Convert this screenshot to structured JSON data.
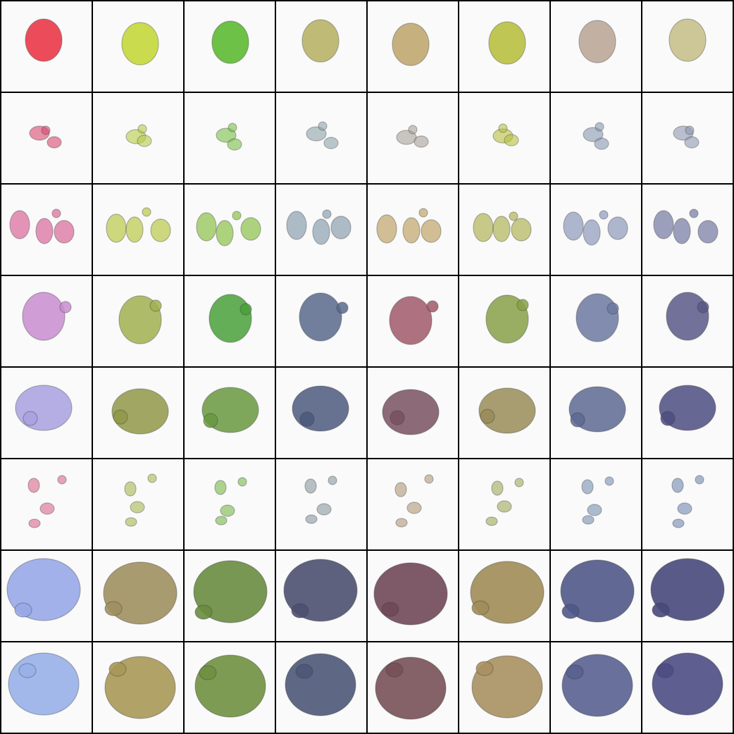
{
  "grid": {
    "rows": 8,
    "cols": 8
  },
  "colors": {
    "border": "#000000",
    "background": "#fafafa",
    "columns": [
      "#ea3848",
      "#c4d83a",
      "#5cba32",
      "#b8b468",
      "#c0a870",
      "#b8c040",
      "#a8a4a8",
      "#8c88a4"
    ]
  },
  "rows": [
    {
      "shape": "large-blob",
      "colors": [
        "#ea3848",
        "#c4d83a",
        "#5cba32",
        "#b8b468",
        "#c0a870",
        "#b8c040",
        "#bba898",
        "#c8c08c"
      ]
    },
    {
      "shape": "small-blobs",
      "colors": [
        "#d84870",
        "#b8cc48",
        "#78c048",
        "#8ca4a8",
        "#a8a098",
        "#b8c040",
        "#8898b0",
        "#9098b0"
      ]
    },
    {
      "shape": "many-blobs",
      "colors": [
        "#d86898",
        "#b8c848",
        "#8cc048",
        "#8ca0b0",
        "#c0a468",
        "#b0b458",
        "#8c98b8",
        "#7478a0"
      ]
    },
    {
      "shape": "medium-blob",
      "colors": [
        "#c88cd0",
        "#a0b050",
        "#48a038",
        "#58688c",
        "#a05868",
        "#88a048",
        "#6c78a0",
        "#585888"
      ]
    },
    {
      "shape": "ragged-blob",
      "colors": [
        "#a8a0e0",
        "#909848",
        "#689840",
        "#4c587c",
        "#785060",
        "#988c58",
        "#5c6890",
        "#4c4c80"
      ]
    },
    {
      "shape": "sparse-blobs",
      "colors": [
        "#d86888",
        "#a8b850",
        "#78b848",
        "#8898a0",
        "#b09878",
        "#a0a858",
        "#7890b0",
        "#7088b0"
      ]
    },
    {
      "shape": "huge-blob",
      "colors": [
        "#98a8e8",
        "#a09060",
        "#688c40",
        "#4c5070",
        "#704858",
        "#a08c58",
        "#505888",
        "#48487c"
      ]
    },
    {
      "shape": "huge-blob-2",
      "colors": [
        "#98b0e8",
        "#a89858",
        "#709040",
        "#4c5878",
        "#785058",
        "#a89060",
        "#586090",
        "#4c4c84"
      ]
    }
  ]
}
